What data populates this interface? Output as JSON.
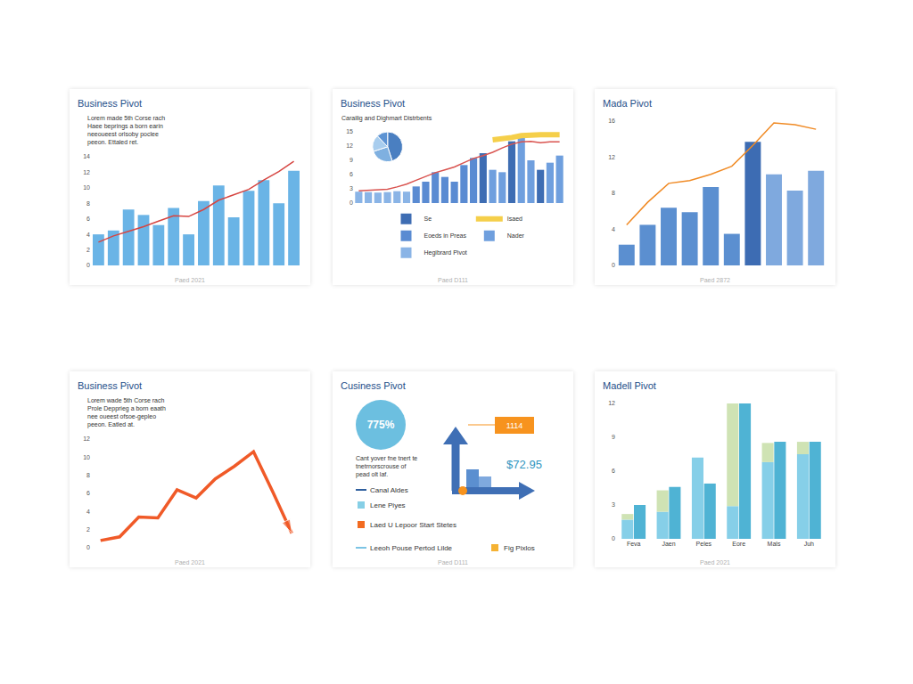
{
  "chart_data": [
    {
      "type": "bar",
      "title": "Business Pivot",
      "text": [
        "Lorem made 5th Corse rach",
        "Haee beprings a born earin",
        "neeoueest orlsoby poclee",
        "peeon. Ettaled ret."
      ],
      "categories": [
        null,
        null,
        null,
        null,
        null,
        null,
        null,
        null,
        null,
        null,
        null,
        null,
        null,
        null
      ],
      "series": [
        {
          "type": "bar",
          "color": "#6ab4e6",
          "values": [
            4,
            4.5,
            7.2,
            6.5,
            5.2,
            7.4,
            4,
            8.3,
            10.3,
            6.2,
            9.6,
            11,
            8,
            12.2
          ]
        },
        {
          "type": "line",
          "color": "#d64541",
          "values": [
            3,
            3.8,
            4.4,
            5,
            5.7,
            6.4,
            6.3,
            7.2,
            8.4,
            9.1,
            9.8,
            11,
            12.1,
            13.4
          ]
        }
      ],
      "ylim": [
        0,
        14
      ],
      "yticks": [
        0,
        2,
        4,
        6,
        8,
        10,
        12,
        14
      ],
      "grid": false,
      "tick_labels": "y",
      "footer": "Paed 2021"
    },
    {
      "type": "bar",
      "title": "Business Pivot",
      "subtitle": "Carailig and Dighmart Distrbents",
      "categories": [
        null,
        null,
        null,
        null,
        null,
        null,
        null,
        null,
        null,
        null,
        null,
        null,
        null,
        null,
        null,
        null,
        null,
        null,
        null,
        null,
        null,
        null
      ],
      "series": [
        {
          "name": "Se",
          "type": "bar",
          "color": "#3e6db3",
          "values": [
            null,
            null,
            null,
            null,
            null,
            null,
            null,
            null,
            null,
            null,
            null,
            null,
            null,
            10.5,
            null,
            null,
            13,
            null,
            null,
            7,
            null,
            null
          ]
        },
        {
          "name": "Isaed",
          "type": "line",
          "line_style": "band",
          "color": "#f5cf4a",
          "values": [
            null,
            null,
            null,
            null,
            null,
            null,
            null,
            null,
            null,
            null,
            null,
            null,
            null,
            null,
            13.3,
            13.5,
            13.8,
            14.2,
            14.4,
            14.4,
            14.4,
            14.4
          ]
        },
        {
          "name": "Eoeds in Preas",
          "type": "bar",
          "color": "#5a8bd2",
          "values": [
            null,
            null,
            null,
            null,
            null,
            null,
            3.5,
            4.5,
            6.5,
            5.5,
            4.5,
            8,
            9.5,
            null,
            null,
            null,
            null,
            null,
            null,
            null,
            null,
            null
          ]
        },
        {
          "name": "Nader",
          "type": "bar",
          "color": "#6f9fde",
          "values": [
            null,
            null,
            null,
            null,
            null,
            null,
            null,
            null,
            null,
            null,
            null,
            null,
            null,
            null,
            7,
            6.5,
            null,
            14.5,
            9,
            null,
            8.5,
            10
          ]
        },
        {
          "name": "Hegibrard Pivot",
          "type": "bar",
          "color": "#8ab4e6",
          "values": [
            2.4,
            2.3,
            2.2,
            2.3,
            2.5,
            2.4,
            null,
            null,
            null,
            null,
            null,
            null,
            null,
            null,
            null,
            null,
            null,
            null,
            null,
            null,
            null,
            null
          ]
        },
        {
          "type": "line",
          "color": "#d9534f",
          "values": [
            2.6,
            2.7,
            2.7,
            2.9,
            3.4,
            4,
            4.8,
            5.6,
            6.4,
            7,
            7.6,
            8.5,
            9.4,
            10,
            10.7,
            11.6,
            12.4,
            12.9,
            13,
            12.7,
            12.9,
            12.9
          ]
        }
      ],
      "inset": {
        "type": "pie",
        "values": [
          45,
          25,
          18,
          12
        ],
        "colors": [
          "#4a7fc1",
          "#7fb0e0",
          "#a8cdee",
          "#5d93d3"
        ]
      },
      "ylim": [
        0,
        15
      ],
      "yticks": [
        0,
        3,
        6,
        9,
        12,
        15
      ],
      "grid": false,
      "tick_labels": "y",
      "legend": "bottom",
      "footer": "Paed D111"
    },
    {
      "type": "bar",
      "title": "Mada Pivot",
      "categories": [
        null,
        null,
        null,
        null,
        null,
        null,
        null,
        null,
        null,
        null
      ],
      "series": [
        {
          "type": "bar",
          "colors": [
            "#5b8fd0",
            "#5b8fd0",
            "#5b8fd0",
            "#5b8fd0",
            "#5b8fd0",
            "#5b8fd0",
            "#3d6cb3",
            "#7fa9de",
            "#7fa9de",
            "#7fa9de"
          ],
          "values": [
            2.3,
            4.5,
            6.4,
            5.9,
            8.7,
            3.5,
            13.7,
            10.1,
            8.3,
            10.5
          ]
        },
        {
          "type": "line",
          "color": "#f08a24",
          "values": [
            4.5,
            7,
            9.1,
            9.4,
            10.1,
            11,
            13.3,
            15.8,
            15.6,
            15.1
          ]
        }
      ],
      "ylim": [
        0,
        16
      ],
      "yticks": [
        0,
        4,
        8,
        12,
        16
      ],
      "grid": false,
      "tick_labels": "y",
      "footer": "Paed 2872"
    },
    {
      "type": "line",
      "title": "Business Pivot",
      "text": [
        "Lorem wade 5th Corse rach",
        "Prole Depprieg a born eaath",
        "nee oueest ofsoe-gepleo",
        "peeon. Eatled at."
      ],
      "categories": [
        null,
        null,
        null,
        null,
        null,
        null,
        null,
        null,
        null,
        null,
        null
      ],
      "series": [
        {
          "type": "line",
          "color": "#f05a28",
          "marker": "arrow",
          "values": [
            0.8,
            1.2,
            3.4,
            3.3,
            6.4,
            5.5,
            7.6,
            9,
            10.6,
            6.2,
            1.6
          ]
        }
      ],
      "ylim": [
        0,
        12
      ],
      "yticks": [
        0,
        2,
        4,
        6,
        8,
        10,
        12
      ],
      "grid": false,
      "tick_labels": "y",
      "footer": "Paed 2021"
    },
    {
      "type": "infographic",
      "title": "Cusiness Pivot",
      "kpi": "775%",
      "badge": "1114",
      "price": "$72.95",
      "text": [
        "Cant yover fne tnert te",
        "tnetrnorscrouse of",
        "pead olt laf."
      ],
      "legend_items": [
        {
          "name": "Canal Aldes",
          "color": "#2f5f9e",
          "marker": "line"
        },
        {
          "name": "Lene Piyes",
          "color": "#86cfe6",
          "marker": "square"
        },
        {
          "name": "Laed U Lepoor Start Stetes",
          "color": "#f26b21",
          "marker": "square"
        },
        {
          "name": "Leeoh Pouse Pertod Lilde",
          "color": "#7cc4e4",
          "marker": "line"
        },
        {
          "name": "Fig Pixlos",
          "color": "#f5b233",
          "marker": "square"
        }
      ],
      "footer": "Paed D111"
    },
    {
      "type": "bar",
      "title": "Madell Pivot",
      "stacked": true,
      "categories": [
        "Feva",
        "Jaen",
        "Peles",
        "Eore",
        "Mals",
        "Juh"
      ],
      "groups": [
        {
          "series": [
            {
              "color": "#86cfe8",
              "values": [
                1.7,
                2.4,
                7.2,
                2.9,
                6.8,
                7.5
              ]
            },
            {
              "color": "#cfe3b4",
              "values": [
                0.5,
                1.9,
                0,
                9.1,
                1.7,
                1.1
              ]
            }
          ]
        },
        {
          "series": [
            {
              "color": "#4fb3d4",
              "values": [
                3,
                4.6,
                4.9,
                12,
                8.6,
                8.6
              ]
            }
          ]
        }
      ],
      "ylim": [
        0,
        12
      ],
      "yticks": [
        0,
        3,
        6,
        9,
        12
      ],
      "grid": false,
      "footer": "Paed 2021"
    }
  ]
}
